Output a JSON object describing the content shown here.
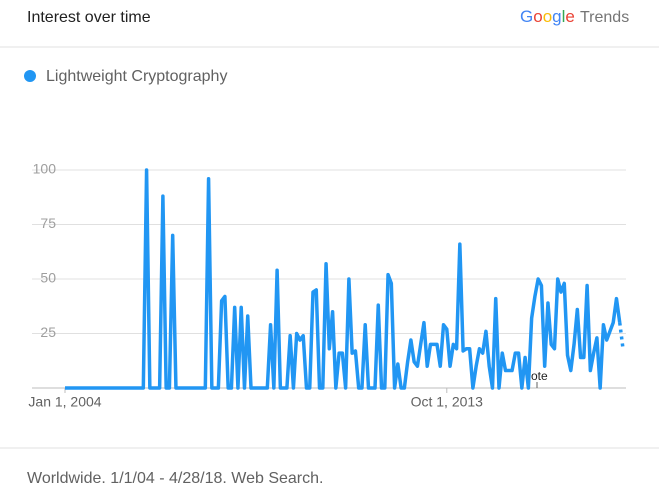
{
  "header": {
    "title": "Interest over time",
    "brand": "Google",
    "product": "Trends"
  },
  "chart_data": {
    "type": "line",
    "series": [
      {
        "name": "Lightweight Cryptography",
        "color": "#2196f3",
        "values": [
          0,
          0,
          0,
          0,
          0,
          0,
          0,
          0,
          0,
          0,
          0,
          0,
          0,
          0,
          0,
          0,
          0,
          0,
          0,
          0,
          0,
          0,
          0,
          0,
          0,
          100,
          0,
          0,
          0,
          0,
          88,
          0,
          0,
          70,
          0,
          0,
          0,
          0,
          0,
          0,
          0,
          0,
          0,
          0,
          96,
          0,
          0,
          0,
          40,
          42,
          0,
          0,
          37,
          0,
          37,
          0,
          33,
          0,
          0,
          0,
          0,
          0,
          0,
          29,
          0,
          54,
          0,
          0,
          0,
          24,
          0,
          25,
          22,
          24,
          0,
          0,
          44,
          45,
          0,
          0,
          57,
          18,
          35,
          0,
          16,
          16,
          0,
          50,
          16,
          17,
          0,
          0,
          29,
          0,
          0,
          0,
          38,
          0,
          0,
          52,
          48,
          0,
          11,
          0,
          0,
          12,
          22,
          12,
          10,
          20,
          30,
          10,
          20,
          20,
          20,
          10,
          29,
          27,
          10,
          20,
          18,
          66,
          17,
          18,
          18,
          0,
          10,
          18,
          16,
          26,
          10,
          0,
          41,
          0,
          16,
          8,
          8,
          8,
          16,
          16,
          0,
          14,
          0,
          32,
          42,
          50,
          47,
          10,
          39,
          20,
          18,
          50,
          44,
          48,
          15,
          8,
          20,
          36,
          14,
          14,
          47,
          8,
          16,
          23,
          0,
          29,
          22,
          26,
          30,
          41,
          30,
          18
        ]
      }
    ],
    "ylim": [
      0,
      100
    ],
    "yticks": [
      25,
      50,
      75,
      100
    ],
    "xlim": [
      0,
      171
    ],
    "xticks": [
      {
        "value": 0,
        "label": "Jan 1, 2004"
      },
      {
        "value": 117,
        "label": "Oct 1, 2013"
      }
    ],
    "annotation": "Note",
    "grid": true
  },
  "footer": "Worldwide. 1/1/04 - 4/28/18. Web Search."
}
